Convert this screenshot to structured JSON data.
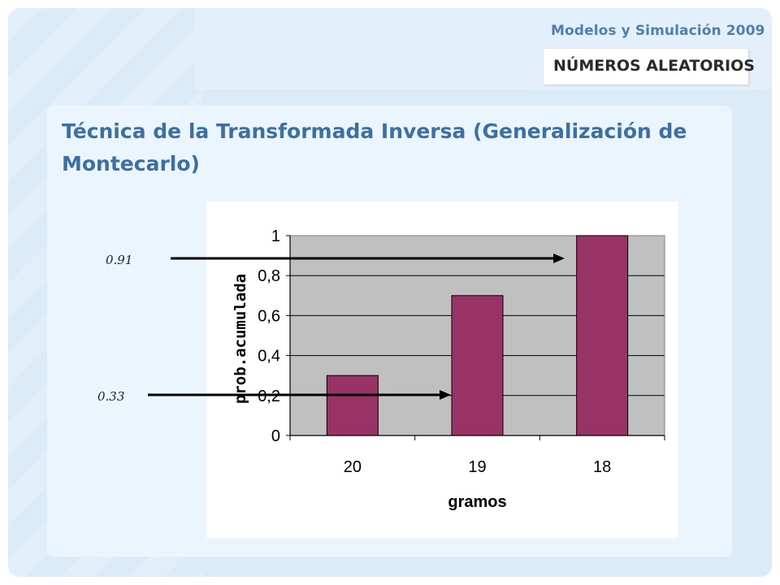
{
  "header": {
    "course": "Modelos y Simulación 2009",
    "topic": "NÚMEROS ALEATORIOS"
  },
  "slide": {
    "title": "Técnica de la Transformada Inversa (Generalización de Montecarlo)"
  },
  "annotations": [
    {
      "label": "0.91",
      "value": 0.91,
      "target_category": "18"
    },
    {
      "label": "0.33",
      "value": 0.33,
      "target_category": "19"
    }
  ],
  "chart_data": {
    "type": "bar",
    "categories": [
      "20",
      "19",
      "18"
    ],
    "values": [
      0.3,
      0.7,
      1.0
    ],
    "xlabel": "gramos",
    "ylabel": "prob.acumulada",
    "ylim": [
      0,
      1
    ],
    "yticks": [
      0,
      0.2,
      0.4,
      0.6,
      0.8,
      1
    ],
    "ytick_labels": [
      "0",
      "0,2",
      "0,4",
      "0,6",
      "0,8",
      "1"
    ],
    "grid": true,
    "legend": "none",
    "colors": {
      "bar": "#993366",
      "plot_bg": "#c0c0c0",
      "grid": "#000000",
      "arrow": "#000000"
    }
  }
}
